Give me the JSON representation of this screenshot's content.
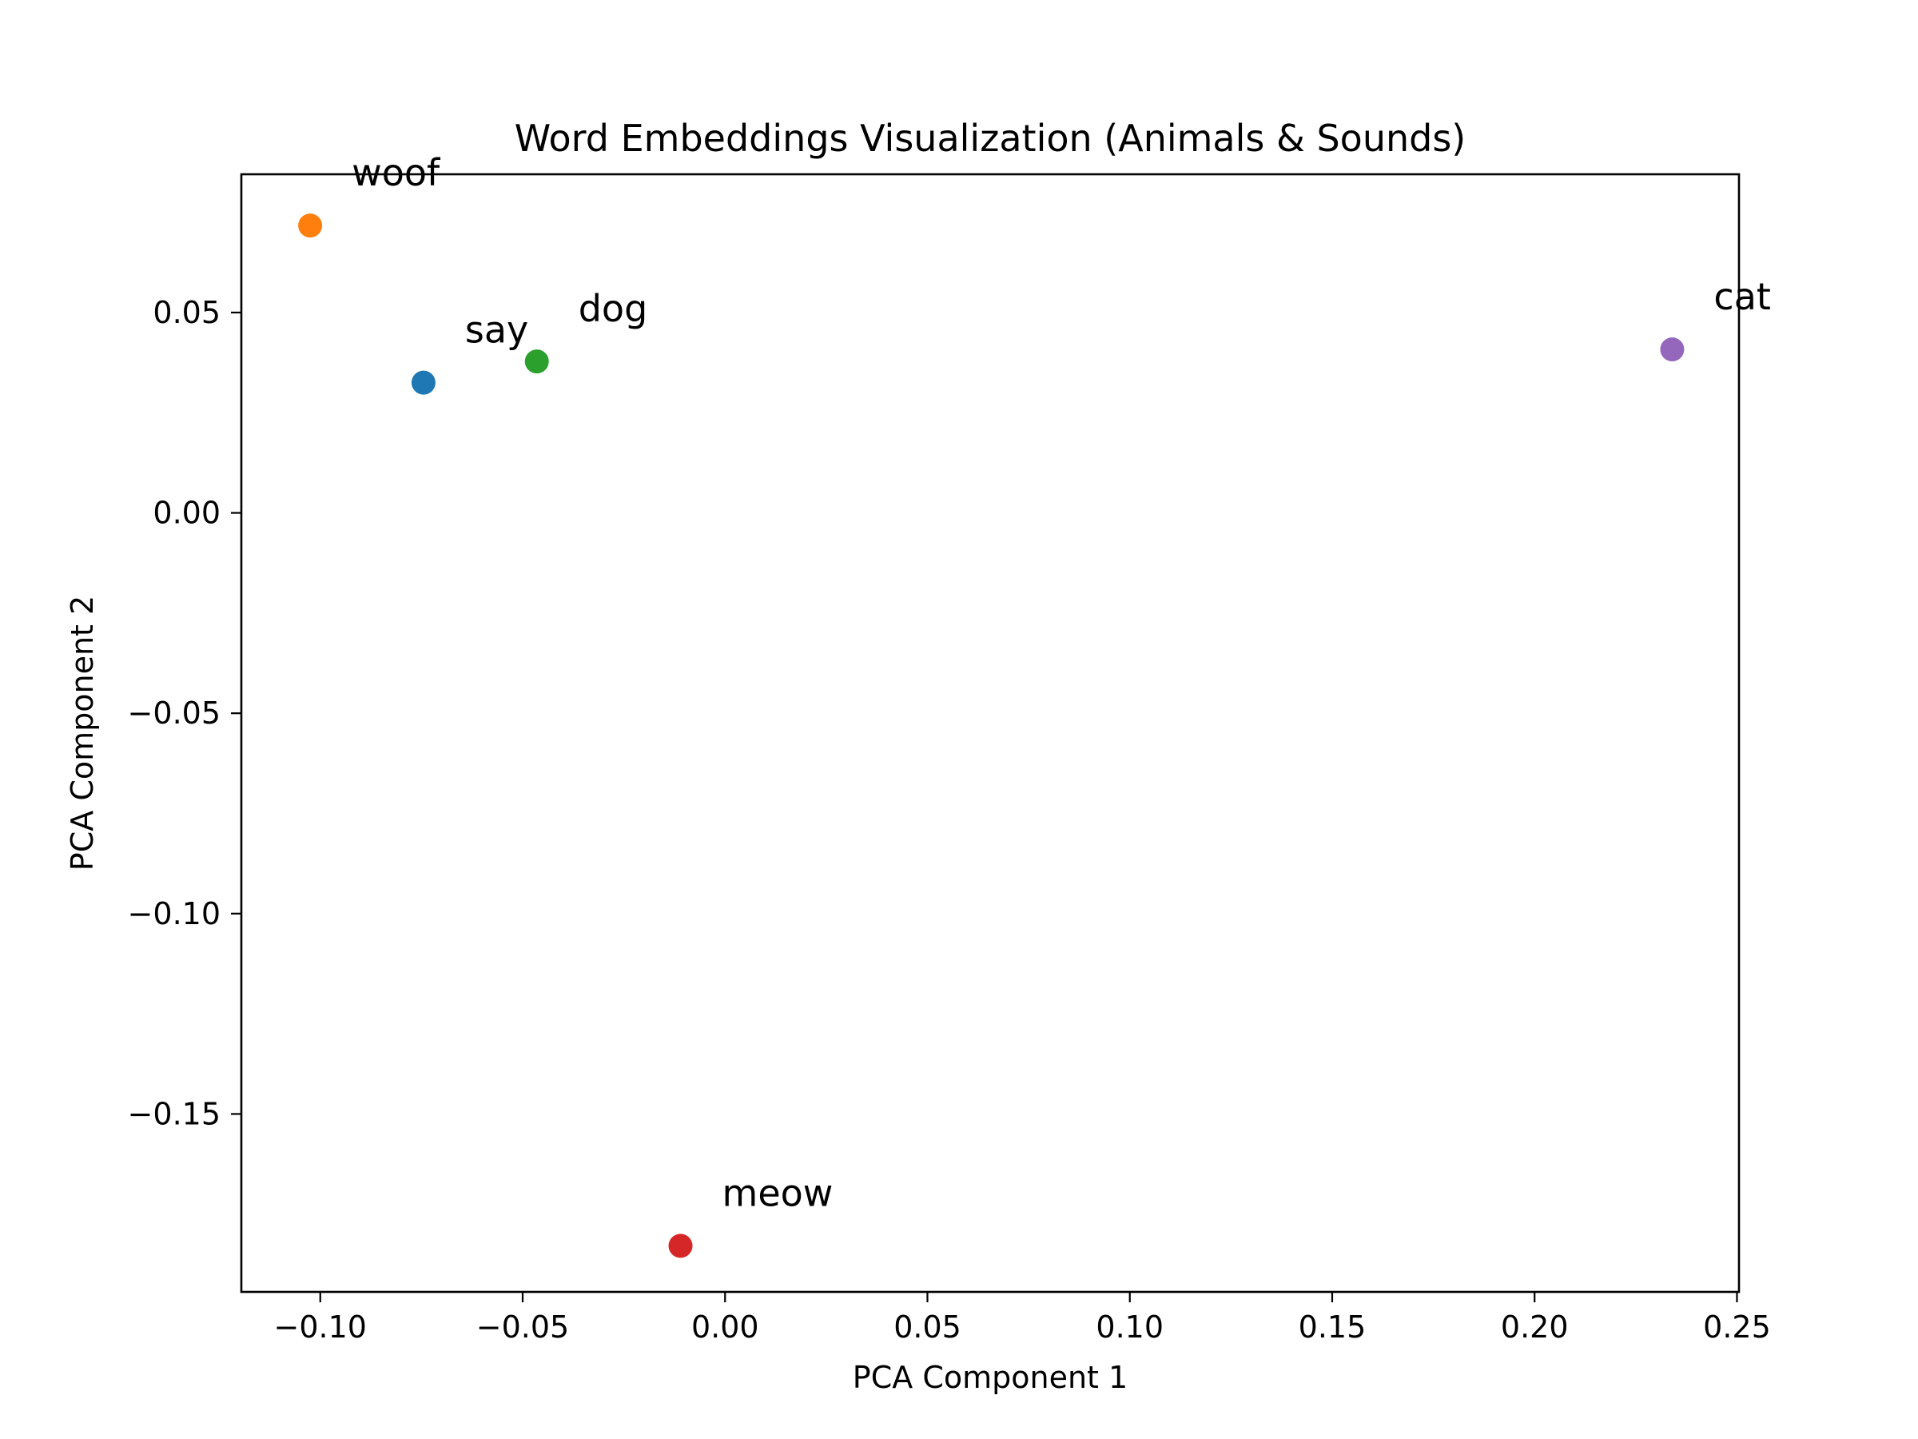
{
  "chart_data": {
    "type": "scatter",
    "title": "Word Embeddings Visualization (Animals & Sounds)",
    "xlabel": "PCA Component 1",
    "ylabel": "PCA Component 2",
    "xlim": [
      -0.1195,
      0.2505
    ],
    "ylim": [
      -0.1944,
      0.0845
    ],
    "xticks": [
      {
        "value": -0.1,
        "label": "−0.10"
      },
      {
        "value": -0.05,
        "label": "−0.05"
      },
      {
        "value": 0.0,
        "label": "0.00"
      },
      {
        "value": 0.05,
        "label": "0.05"
      },
      {
        "value": 0.1,
        "label": "0.10"
      },
      {
        "value": 0.15,
        "label": "0.15"
      },
      {
        "value": 0.2,
        "label": "0.20"
      },
      {
        "value": 0.25,
        "label": "0.25"
      }
    ],
    "yticks": [
      {
        "value": 0.05,
        "label": "0.05"
      },
      {
        "value": 0.0,
        "label": "0.00"
      },
      {
        "value": -0.05,
        "label": "−0.05"
      },
      {
        "value": -0.1,
        "label": "−0.10"
      },
      {
        "value": -0.15,
        "label": "−0.15"
      }
    ],
    "grid": false,
    "legend": "none",
    "points": [
      {
        "label": "say",
        "x": -0.0745,
        "y": 0.0325,
        "color": "#1f77b4"
      },
      {
        "label": "woof",
        "x": -0.1025,
        "y": 0.0717,
        "color": "#ff7f0e"
      },
      {
        "label": "dog",
        "x": -0.0465,
        "y": 0.0378,
        "color": "#2ca02c"
      },
      {
        "label": "meow",
        "x": -0.011,
        "y": -0.1829,
        "color": "#d62728"
      },
      {
        "label": "cat",
        "x": 0.234,
        "y": 0.0408,
        "color": "#9467bd"
      }
    ]
  }
}
